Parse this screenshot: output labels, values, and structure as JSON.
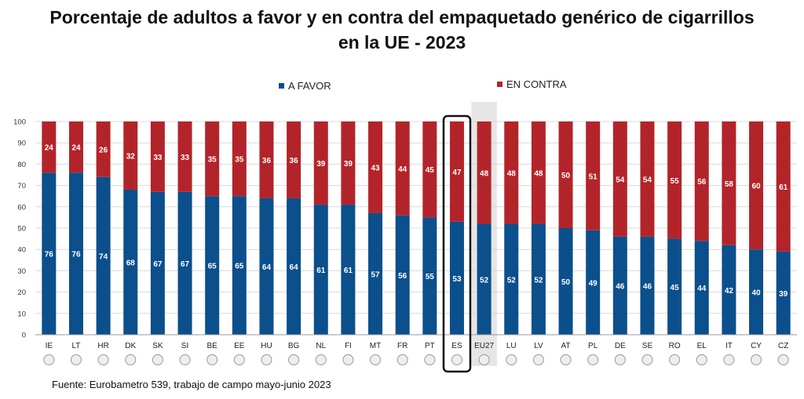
{
  "chart_data": {
    "type": "bar",
    "stacked": true,
    "title_line1": "Porcentaje de adultos a favor y en contra del empaquetado genérico de cigarrillos",
    "title_line2": "en la UE - 2023",
    "categories": [
      "IE",
      "LT",
      "HR",
      "DK",
      "SK",
      "SI",
      "BE",
      "EE",
      "HU",
      "BG",
      "NL",
      "FI",
      "MT",
      "FR",
      "PT",
      "ES",
      "EU27",
      "LU",
      "LV",
      "AT",
      "PL",
      "DE",
      "SE",
      "RO",
      "EL",
      "IT",
      "CY",
      "CZ"
    ],
    "series": [
      {
        "name": "A FAVOR",
        "color": "#0b4f8c",
        "values": [
          76,
          76,
          74,
          68,
          67,
          67,
          65,
          65,
          64,
          64,
          61,
          61,
          57,
          56,
          55,
          53,
          52,
          52,
          52,
          50,
          49,
          46,
          46,
          45,
          44,
          42,
          40,
          39
        ]
      },
      {
        "name": "EN CONTRA",
        "color": "#b3242a",
        "values": [
          24,
          24,
          26,
          32,
          33,
          33,
          35,
          35,
          36,
          36,
          39,
          39,
          43,
          44,
          45,
          47,
          48,
          48,
          48,
          50,
          51,
          54,
          54,
          55,
          56,
          58,
          60,
          61
        ]
      }
    ],
    "ylim": [
      0,
      100
    ],
    "yticks": [
      0,
      10,
      20,
      30,
      40,
      50,
      60,
      70,
      80,
      90,
      100
    ],
    "legend_position": "top",
    "highlighted_category": "ES",
    "shaded_category": "EU27",
    "flags_shown": true
  },
  "source": "Fuente: Eurobametro 539, trabajo de campo mayo-junio 2023",
  "colors": {
    "favor": "#0b4f8c",
    "contra": "#b3242a",
    "shade": "#e6e6e6",
    "grid": "#d9d9d9"
  }
}
